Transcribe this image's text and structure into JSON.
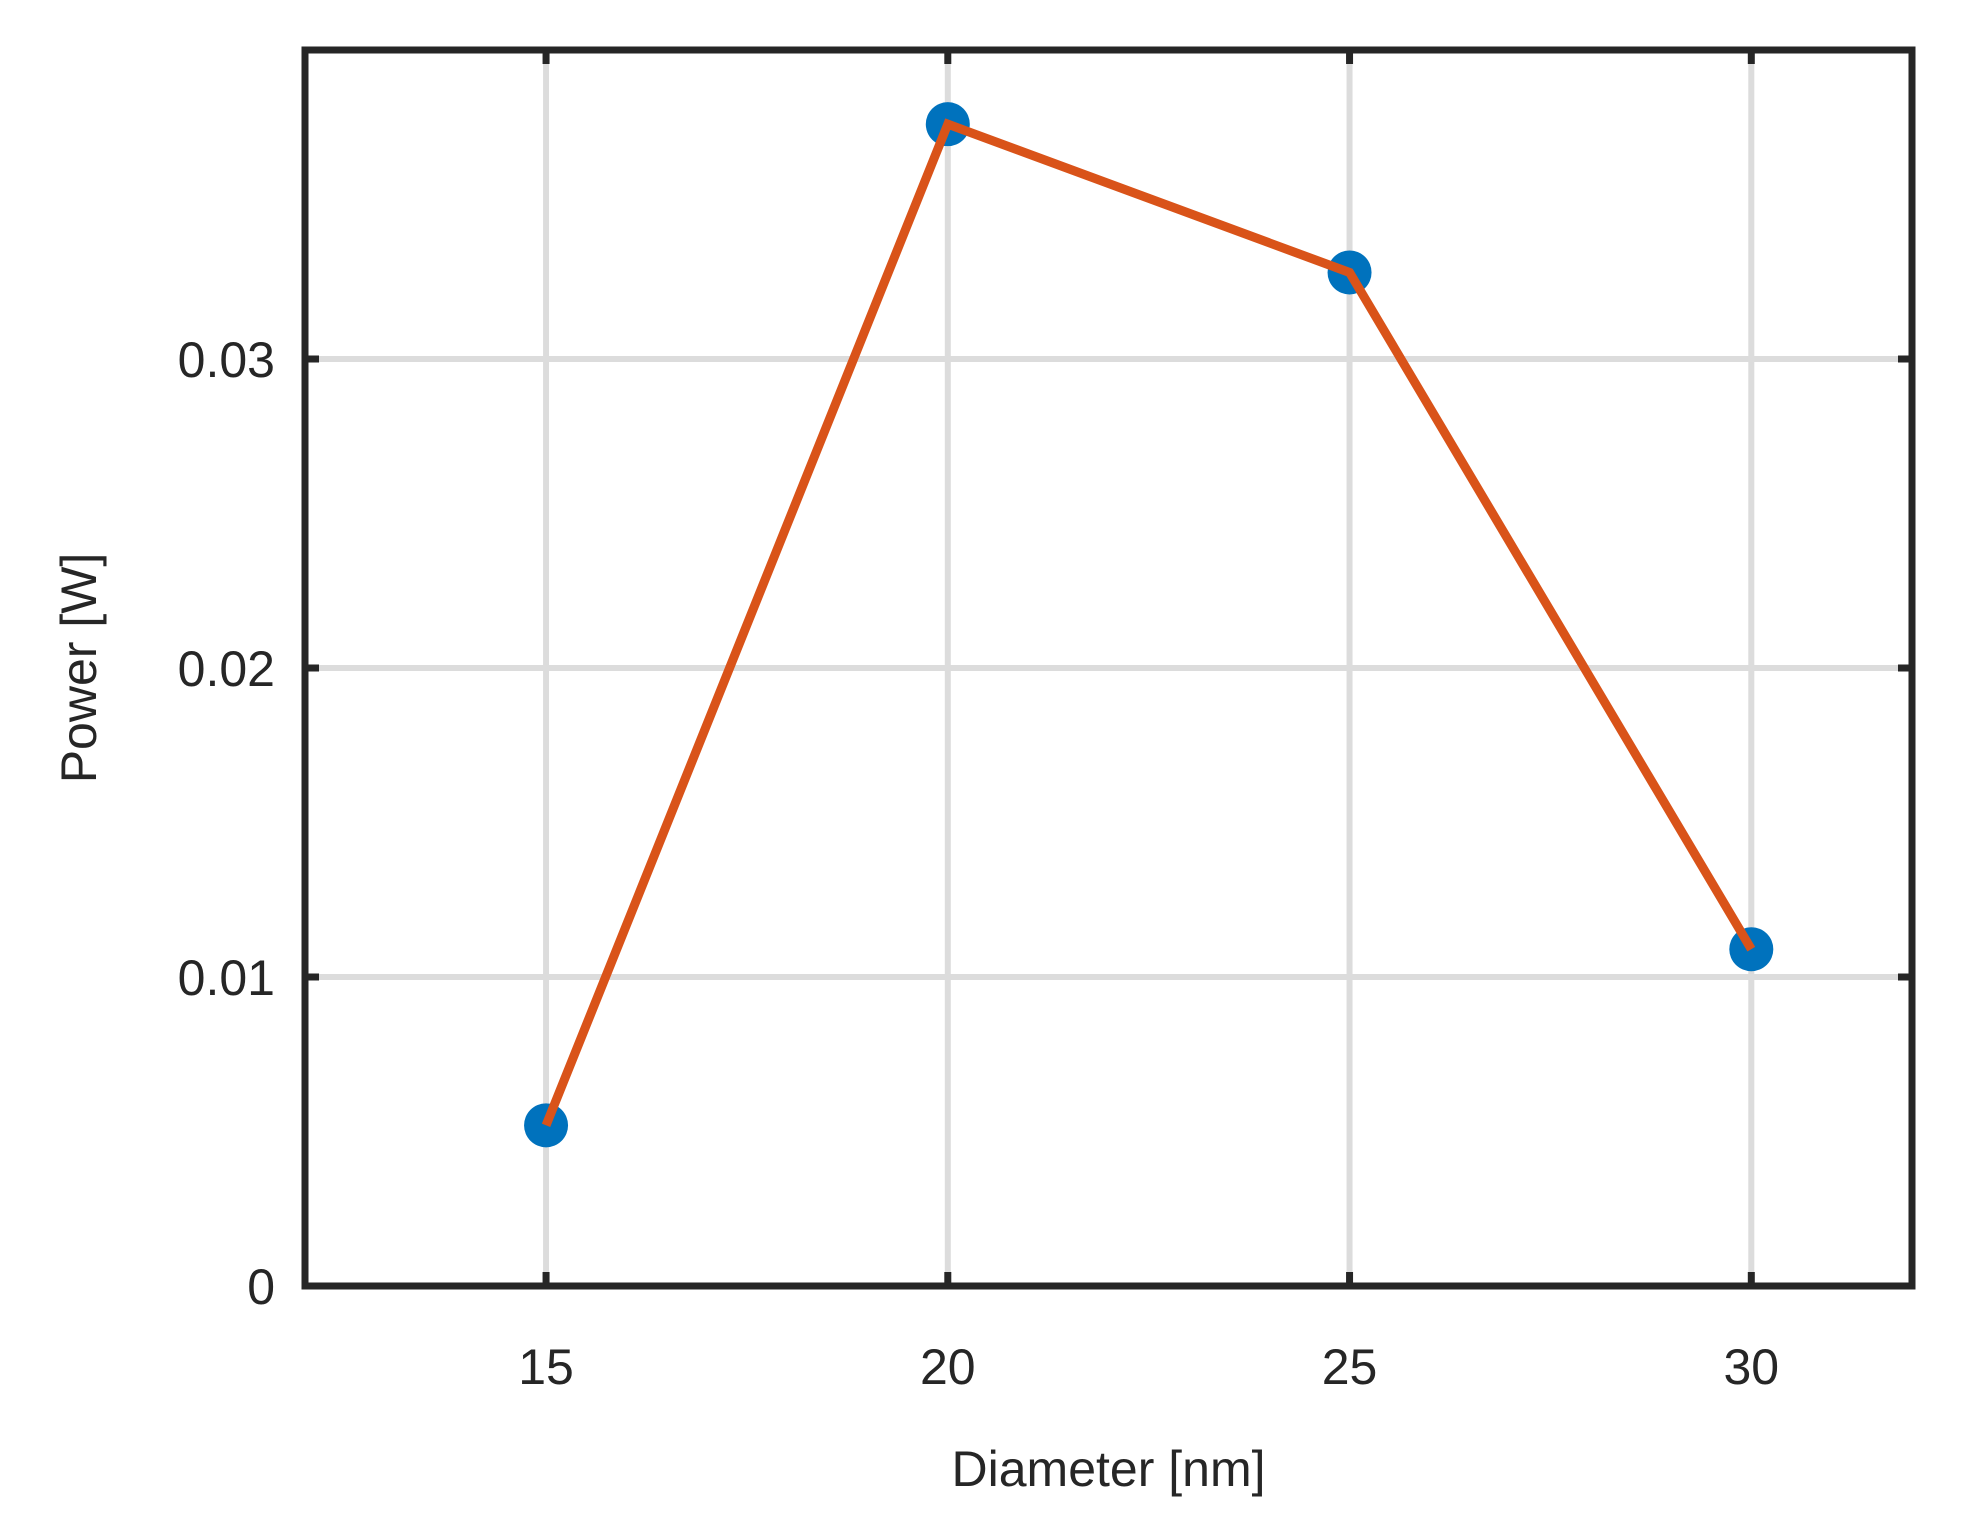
{
  "chart_data": {
    "type": "line",
    "title": "",
    "xlabel": "Diameter [nm]",
    "ylabel": "Power [W]",
    "xlim": [
      12,
      32
    ],
    "ylim": [
      0,
      0.04
    ],
    "x_ticks": [
      15,
      20,
      25,
      30
    ],
    "x_tick_labels": [
      "15",
      "20",
      "25",
      "30"
    ],
    "y_ticks": [
      0,
      0.01,
      0.02,
      0.03
    ],
    "y_tick_labels": [
      "0",
      "0.01",
      "0.02",
      "0.03"
    ],
    "grid": true,
    "legend": "none",
    "series": [
      {
        "x": [
          15,
          20,
          25,
          30
        ],
        "y": [
          0.0052,
          0.0376,
          0.0328,
          0.0109
        ],
        "marker": "circle",
        "marker_color": "#0072BD",
        "line_color": "#D95319"
      }
    ]
  }
}
